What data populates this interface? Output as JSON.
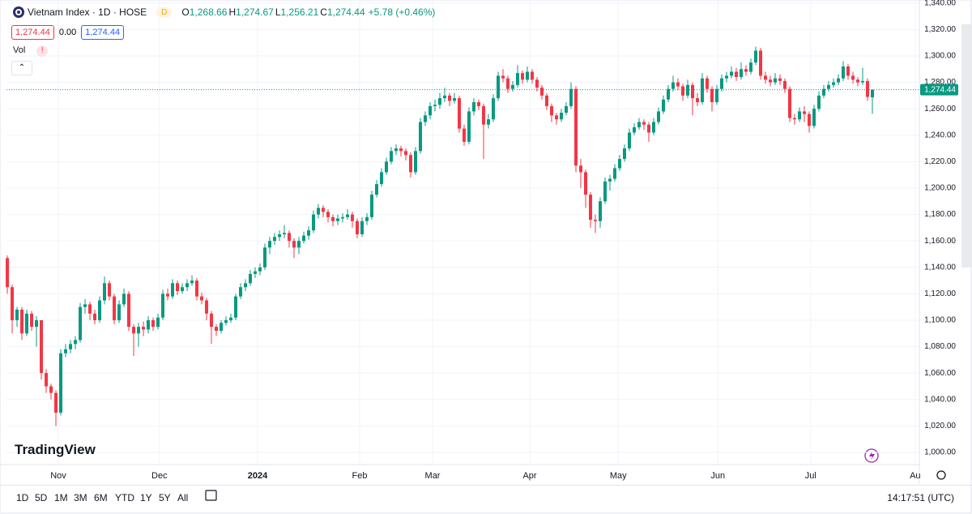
{
  "chart_data": {
    "type": "candlestick",
    "title": "Vietnam Index · 1D · HOSE",
    "exchange_badge": "D",
    "legend": [
      {
        "key": "O",
        "value": "1,268.66"
      },
      {
        "key": "H",
        "value": "1,274.67"
      },
      {
        "key": "L",
        "value": "1,256.21"
      },
      {
        "key": "C",
        "value": "1,274.44"
      }
    ],
    "change": "+5.78 (+0.46%)",
    "price_boxes": [
      "1,274.44",
      "0.00",
      "1,274.44"
    ],
    "volume_label": "Vol",
    "logo": "TradingView",
    "up_color": "#089981",
    "down_color": "#f23645",
    "grid": true,
    "ylim": [
      991.4,
      1342.3
    ],
    "yticks": [
      {
        "value": 1000,
        "label": "1,000.00"
      },
      {
        "value": 1020,
        "label": "1,020.00"
      },
      {
        "value": 1040,
        "label": "1,040.00"
      },
      {
        "value": 1060,
        "label": "1,060.00"
      },
      {
        "value": 1080,
        "label": "1,080.00"
      },
      {
        "value": 1100,
        "label": "1,100.00"
      },
      {
        "value": 1120,
        "label": "1,120.00"
      },
      {
        "value": 1140,
        "label": "1,140.00"
      },
      {
        "value": 1160,
        "label": "1,160.00"
      },
      {
        "value": 1180,
        "label": "1,180.00"
      },
      {
        "value": 1200,
        "label": "1,200.00"
      },
      {
        "value": 1220,
        "label": "1,220.00"
      },
      {
        "value": 1240,
        "label": "1,240.00"
      },
      {
        "value": 1260,
        "label": "1,260.00"
      },
      {
        "value": 1280,
        "label": "1,280.00"
      },
      {
        "value": 1300,
        "label": "1,300.00"
      },
      {
        "value": 1320,
        "label": "1,320.00"
      },
      {
        "value": 1340,
        "label": "1,340.00"
      }
    ],
    "xlim": [
      -0.17,
      187.5
    ],
    "xticks": [
      {
        "value": 10.5,
        "label": "Nov"
      },
      {
        "value": 31.3,
        "label": "Dec"
      },
      {
        "value": 51.5,
        "label": "2024"
      },
      {
        "value": 72.5,
        "label": "Feb"
      },
      {
        "value": 87.5,
        "label": "Mar"
      },
      {
        "value": 107.5,
        "label": "Apr"
      },
      {
        "value": 125.7,
        "label": "May"
      },
      {
        "value": 146.2,
        "label": "Jun"
      },
      {
        "value": 165.3,
        "label": "Jul"
      },
      {
        "value": 186.8,
        "label": "Au"
      }
    ],
    "last_price": {
      "value": 1274.44,
      "label": "1,274.44"
    },
    "ohlc": [
      [
        1147,
        1149,
        1120,
        1125
      ],
      [
        1125,
        1127,
        1090,
        1100
      ],
      [
        1100,
        1110,
        1095,
        1108
      ],
      [
        1108,
        1110,
        1085,
        1090
      ],
      [
        1090,
        1108,
        1088,
        1105
      ],
      [
        1105,
        1107,
        1092,
        1095
      ],
      [
        1095,
        1103,
        1080,
        1100
      ],
      [
        1100,
        1100,
        1055,
        1060
      ],
      [
        1060,
        1063,
        1045,
        1050
      ],
      [
        1050,
        1052,
        1040,
        1045
      ],
      [
        1045,
        1047,
        1020,
        1030
      ],
      [
        1030,
        1078,
        1028,
        1075
      ],
      [
        1075,
        1082,
        1072,
        1078
      ],
      [
        1078,
        1085,
        1075,
        1082
      ],
      [
        1082,
        1088,
        1078,
        1085
      ],
      [
        1085,
        1113,
        1083,
        1110
      ],
      [
        1110,
        1116,
        1105,
        1112
      ],
      [
        1112,
        1114,
        1100,
        1105
      ],
      [
        1105,
        1108,
        1097,
        1100
      ],
      [
        1100,
        1118,
        1098,
        1115
      ],
      [
        1115,
        1133,
        1112,
        1128
      ],
      [
        1128,
        1130,
        1115,
        1118
      ],
      [
        1118,
        1120,
        1097,
        1100
      ],
      [
        1100,
        1115,
        1098,
        1112
      ],
      [
        1112,
        1124,
        1110,
        1120
      ],
      [
        1120,
        1122,
        1092,
        1095
      ],
      [
        1095,
        1097,
        1073,
        1090
      ],
      [
        1090,
        1098,
        1080,
        1095
      ],
      [
        1095,
        1099,
        1088,
        1093
      ],
      [
        1093,
        1103,
        1090,
        1100
      ],
      [
        1100,
        1102,
        1092,
        1095
      ],
      [
        1095,
        1105,
        1093,
        1102
      ],
      [
        1102,
        1123,
        1100,
        1120
      ],
      [
        1120,
        1124,
        1115,
        1118
      ],
      [
        1118,
        1131,
        1116,
        1128
      ],
      [
        1128,
        1130,
        1119,
        1122
      ],
      [
        1122,
        1128,
        1120,
        1125
      ],
      [
        1125,
        1131,
        1122,
        1128
      ],
      [
        1128,
        1134,
        1126,
        1130
      ],
      [
        1130,
        1132,
        1115,
        1118
      ],
      [
        1118,
        1121,
        1112,
        1115
      ],
      [
        1115,
        1117,
        1100,
        1105
      ],
      [
        1105,
        1107,
        1082,
        1095
      ],
      [
        1095,
        1097,
        1088,
        1092
      ],
      [
        1092,
        1100,
        1090,
        1098
      ],
      [
        1098,
        1103,
        1096,
        1100
      ],
      [
        1100,
        1105,
        1098,
        1102
      ],
      [
        1102,
        1120,
        1100,
        1118
      ],
      [
        1118,
        1128,
        1116,
        1125
      ],
      [
        1125,
        1131,
        1122,
        1128
      ],
      [
        1128,
        1138,
        1126,
        1135
      ],
      [
        1135,
        1140,
        1132,
        1137
      ],
      [
        1137,
        1143,
        1134,
        1140
      ],
      [
        1140,
        1158,
        1138,
        1155
      ],
      [
        1155,
        1163,
        1150,
        1160
      ],
      [
        1160,
        1166,
        1157,
        1163
      ],
      [
        1163,
        1168,
        1160,
        1165
      ],
      [
        1165,
        1172,
        1162,
        1166
      ],
      [
        1166,
        1168,
        1155,
        1160
      ],
      [
        1160,
        1162,
        1147,
        1155
      ],
      [
        1155,
        1163,
        1150,
        1160
      ],
      [
        1160,
        1167,
        1158,
        1164
      ],
      [
        1164,
        1171,
        1161,
        1168
      ],
      [
        1168,
        1183,
        1166,
        1180
      ],
      [
        1180,
        1188,
        1177,
        1185
      ],
      [
        1185,
        1187,
        1178,
        1182
      ],
      [
        1182,
        1184,
        1174,
        1178
      ],
      [
        1178,
        1180,
        1171,
        1175
      ],
      [
        1175,
        1180,
        1172,
        1177
      ],
      [
        1177,
        1181,
        1174,
        1178
      ],
      [
        1178,
        1184,
        1176,
        1180
      ],
      [
        1180,
        1182,
        1170,
        1175
      ],
      [
        1175,
        1177,
        1162,
        1165
      ],
      [
        1165,
        1178,
        1163,
        1175
      ],
      [
        1175,
        1181,
        1172,
        1178
      ],
      [
        1178,
        1198,
        1176,
        1195
      ],
      [
        1195,
        1206,
        1193,
        1203
      ],
      [
        1203,
        1215,
        1201,
        1212
      ],
      [
        1212,
        1223,
        1210,
        1220
      ],
      [
        1220,
        1231,
        1218,
        1228
      ],
      [
        1228,
        1233,
        1225,
        1230
      ],
      [
        1230,
        1232,
        1224,
        1228
      ],
      [
        1228,
        1230,
        1221,
        1225
      ],
      [
        1225,
        1227,
        1208,
        1212
      ],
      [
        1212,
        1231,
        1210,
        1228
      ],
      [
        1228,
        1253,
        1226,
        1250
      ],
      [
        1250,
        1258,
        1247,
        1255
      ],
      [
        1255,
        1265,
        1252,
        1262
      ],
      [
        1262,
        1267,
        1258,
        1263
      ],
      [
        1263,
        1272,
        1260,
        1268
      ],
      [
        1268,
        1276,
        1265,
        1270
      ],
      [
        1270,
        1272,
        1262,
        1266
      ],
      [
        1266,
        1272,
        1264,
        1268
      ],
      [
        1268,
        1270,
        1242,
        1245
      ],
      [
        1245,
        1248,
        1232,
        1235
      ],
      [
        1235,
        1261,
        1233,
        1258
      ],
      [
        1258,
        1268,
        1255,
        1265
      ],
      [
        1265,
        1267,
        1259,
        1262
      ],
      [
        1262,
        1264,
        1222,
        1248
      ],
      [
        1248,
        1256,
        1245,
        1252
      ],
      [
        1252,
        1271,
        1250,
        1268
      ],
      [
        1268,
        1288,
        1266,
        1285
      ],
      [
        1285,
        1290,
        1280,
        1283
      ],
      [
        1283,
        1285,
        1272,
        1275
      ],
      [
        1275,
        1281,
        1273,
        1278
      ],
      [
        1278,
        1293,
        1276,
        1287
      ],
      [
        1287,
        1289,
        1279,
        1282
      ],
      [
        1282,
        1292,
        1280,
        1288
      ],
      [
        1288,
        1290,
        1279,
        1282
      ],
      [
        1282,
        1284,
        1273,
        1276
      ],
      [
        1276,
        1278,
        1267,
        1270
      ],
      [
        1270,
        1272,
        1259,
        1262
      ],
      [
        1262,
        1264,
        1250,
        1255
      ],
      [
        1255,
        1257,
        1248,
        1252
      ],
      [
        1252,
        1260,
        1250,
        1257
      ],
      [
        1257,
        1265,
        1255,
        1262
      ],
      [
        1262,
        1280,
        1260,
        1275
      ],
      [
        1275,
        1277,
        1212,
        1217
      ],
      [
        1217,
        1222,
        1200,
        1212
      ],
      [
        1212,
        1214,
        1185,
        1195
      ],
      [
        1195,
        1197,
        1170,
        1176
      ],
      [
        1176,
        1180,
        1166,
        1175
      ],
      [
        1175,
        1193,
        1170,
        1190
      ],
      [
        1190,
        1208,
        1188,
        1205
      ],
      [
        1205,
        1210,
        1198,
        1207
      ],
      [
        1207,
        1218,
        1205,
        1215
      ],
      [
        1215,
        1225,
        1213,
        1222
      ],
      [
        1222,
        1233,
        1220,
        1230
      ],
      [
        1230,
        1245,
        1228,
        1242
      ],
      [
        1242,
        1249,
        1240,
        1246
      ],
      [
        1246,
        1253,
        1244,
        1250
      ],
      [
        1250,
        1252,
        1244,
        1248
      ],
      [
        1248,
        1250,
        1235,
        1242
      ],
      [
        1242,
        1253,
        1240,
        1250
      ],
      [
        1250,
        1261,
        1248,
        1258
      ],
      [
        1258,
        1270,
        1256,
        1267
      ],
      [
        1267,
        1278,
        1265,
        1275
      ],
      [
        1275,
        1285,
        1273,
        1280
      ],
      [
        1280,
        1283,
        1274,
        1277
      ],
      [
        1277,
        1279,
        1266,
        1270
      ],
      [
        1270,
        1282,
        1268,
        1278
      ],
      [
        1278,
        1280,
        1255,
        1268
      ],
      [
        1268,
        1272,
        1262,
        1265
      ],
      [
        1265,
        1287,
        1263,
        1283
      ],
      [
        1283,
        1285,
        1272,
        1275
      ],
      [
        1275,
        1277,
        1258,
        1265
      ],
      [
        1265,
        1278,
        1263,
        1275
      ],
      [
        1275,
        1286,
        1273,
        1283
      ],
      [
        1283,
        1288,
        1280,
        1285
      ],
      [
        1285,
        1292,
        1283,
        1288
      ],
      [
        1288,
        1291,
        1281,
        1284
      ],
      [
        1284,
        1295,
        1282,
        1290
      ],
      [
        1290,
        1293,
        1285,
        1288
      ],
      [
        1288,
        1298,
        1286,
        1295
      ],
      [
        1295,
        1307,
        1293,
        1304
      ],
      [
        1304,
        1306,
        1282,
        1285
      ],
      [
        1285,
        1288,
        1279,
        1282
      ],
      [
        1282,
        1285,
        1277,
        1280
      ],
      [
        1280,
        1287,
        1278,
        1283
      ],
      [
        1283,
        1286,
        1278,
        1281
      ],
      [
        1281,
        1283,
        1272,
        1275
      ],
      [
        1275,
        1277,
        1250,
        1253
      ],
      [
        1253,
        1256,
        1248,
        1252
      ],
      [
        1252,
        1261,
        1250,
        1258
      ],
      [
        1258,
        1262,
        1250,
        1256
      ],
      [
        1256,
        1258,
        1242,
        1247
      ],
      [
        1247,
        1263,
        1245,
        1260
      ],
      [
        1260,
        1273,
        1258,
        1270
      ],
      [
        1270,
        1278,
        1268,
        1275
      ],
      [
        1275,
        1281,
        1273,
        1278
      ],
      [
        1278,
        1283,
        1276,
        1280
      ],
      [
        1280,
        1286,
        1278,
        1283
      ],
      [
        1283,
        1296,
        1281,
        1292
      ],
      [
        1292,
        1294,
        1282,
        1285
      ],
      [
        1285,
        1288,
        1279,
        1282
      ],
      [
        1282,
        1284,
        1277,
        1280
      ],
      [
        1280,
        1291,
        1278,
        1281
      ],
      [
        1281,
        1283,
        1266,
        1269
      ],
      [
        1268.66,
        1274.67,
        1256.21,
        1274.44
      ]
    ]
  },
  "toolbar": {
    "ranges": [
      "1D",
      "5D",
      "1M",
      "3M",
      "6M",
      "YTD",
      "1Y",
      "5Y",
      "All"
    ],
    "time": "14:17:51 (UTC)"
  }
}
